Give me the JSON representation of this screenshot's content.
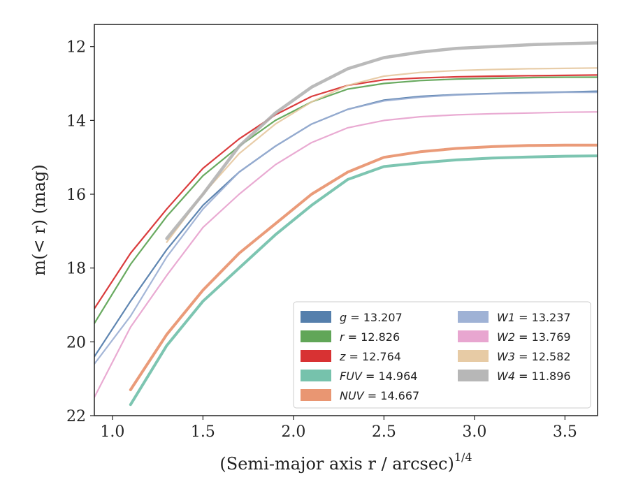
{
  "chart_data": {
    "type": "line",
    "xlabel": "(Semi-major axis r / arcsec)",
    "xlabel_superscript": "1/4",
    "ylabel": "m(< r) (mag)",
    "xlim": [
      0.9,
      3.68
    ],
    "ylim": [
      22,
      11.4
    ],
    "y_inverted": true,
    "x_ticks": [
      "1.0",
      "1.5",
      "2.0",
      "2.5",
      "3.0",
      "3.5"
    ],
    "x_tick_values": [
      1.0,
      1.5,
      2.0,
      2.5,
      3.0,
      3.5
    ],
    "y_ticks": [
      "12",
      "14",
      "16",
      "18",
      "20",
      "22"
    ],
    "y_tick_values": [
      12,
      14,
      16,
      18,
      20,
      22
    ],
    "grid": false,
    "legend_position": "lower-right",
    "series": [
      {
        "name": "g",
        "label": "g = 13.207",
        "color": "#4c78a8",
        "x": [
          0.9,
          1.1,
          1.3,
          1.5,
          1.7,
          1.9,
          2.1,
          2.3,
          2.5,
          2.7,
          2.9,
          3.1,
          3.3,
          3.5,
          3.68
        ],
        "y": [
          20.4,
          18.9,
          17.5,
          16.3,
          15.4,
          14.7,
          14.1,
          13.7,
          13.45,
          13.35,
          13.3,
          13.27,
          13.25,
          13.23,
          13.21
        ]
      },
      {
        "name": "r",
        "label": "r = 12.826",
        "color": "#59a14f",
        "x": [
          0.9,
          1.1,
          1.3,
          1.5,
          1.7,
          1.9,
          2.1,
          2.3,
          2.5,
          2.7,
          2.9,
          3.1,
          3.3,
          3.5,
          3.68
        ],
        "y": [
          19.5,
          17.9,
          16.6,
          15.5,
          14.7,
          14.0,
          13.5,
          13.15,
          13.0,
          12.92,
          12.88,
          12.86,
          12.84,
          12.83,
          12.83
        ]
      },
      {
        "name": "z",
        "label": "z = 12.764",
        "color": "#d62728",
        "x": [
          0.9,
          1.1,
          1.3,
          1.5,
          1.7,
          1.9,
          2.1,
          2.3,
          2.5,
          2.7,
          2.9,
          3.1,
          3.3,
          3.5,
          3.68
        ],
        "y": [
          19.1,
          17.6,
          16.4,
          15.3,
          14.5,
          13.85,
          13.35,
          13.05,
          12.9,
          12.85,
          12.82,
          12.8,
          12.79,
          12.78,
          12.77
        ]
      },
      {
        "name": "FUV",
        "label": "FUV = 14.964",
        "color": "#6fbfa8",
        "x": [
          1.1,
          1.3,
          1.5,
          1.7,
          1.9,
          2.1,
          2.3,
          2.5,
          2.7,
          2.9,
          3.1,
          3.3,
          3.5,
          3.68
        ],
        "y": [
          21.7,
          20.1,
          18.9,
          18.0,
          17.1,
          16.3,
          15.6,
          15.25,
          15.15,
          15.07,
          15.02,
          14.99,
          14.97,
          14.96
        ]
      },
      {
        "name": "NUV",
        "label": "NUV = 14.667",
        "color": "#e8906a",
        "x": [
          1.1,
          1.3,
          1.5,
          1.7,
          1.9,
          2.1,
          2.3,
          2.5,
          2.7,
          2.9,
          3.1,
          3.3,
          3.5,
          3.68
        ],
        "y": [
          21.3,
          19.8,
          18.6,
          17.6,
          16.8,
          16.0,
          15.4,
          15.0,
          14.85,
          14.76,
          14.71,
          14.68,
          14.67,
          14.67
        ]
      },
      {
        "name": "W1",
        "label": "W1 = 13.237",
        "color": "#9aaed3",
        "x": [
          0.9,
          1.1,
          1.3,
          1.5,
          1.7,
          1.9,
          2.1,
          2.3,
          2.5,
          2.7,
          2.9,
          3.1,
          3.3,
          3.5,
          3.68
        ],
        "y": [
          20.6,
          19.3,
          17.7,
          16.4,
          15.4,
          14.7,
          14.1,
          13.7,
          13.47,
          13.37,
          13.31,
          13.28,
          13.26,
          13.24,
          13.24
        ]
      },
      {
        "name": "W2",
        "label": "W2 = 13.769",
        "color": "#e7a1cd",
        "x": [
          0.9,
          1.1,
          1.3,
          1.5,
          1.7,
          1.9,
          2.1,
          2.3,
          2.5,
          2.7,
          2.9,
          3.1,
          3.3,
          3.5,
          3.68
        ],
        "y": [
          21.5,
          19.6,
          18.2,
          16.9,
          16.0,
          15.2,
          14.6,
          14.2,
          14.0,
          13.9,
          13.85,
          13.82,
          13.8,
          13.78,
          13.77
        ]
      },
      {
        "name": "W3",
        "label": "W3 = 12.582",
        "color": "#e6c8a0",
        "x": [
          1.3,
          1.5,
          1.7,
          1.9,
          2.1,
          2.3,
          2.5,
          2.7,
          2.9,
          3.1,
          3.3,
          3.5,
          3.68
        ],
        "y": [
          17.3,
          16.0,
          14.9,
          14.1,
          13.5,
          13.05,
          12.8,
          12.7,
          12.65,
          12.62,
          12.6,
          12.59,
          12.58
        ]
      },
      {
        "name": "W4",
        "label": "W4 = 11.896",
        "color": "#b3b3b3",
        "x": [
          1.3,
          1.5,
          1.7,
          1.9,
          2.1,
          2.3,
          2.5,
          2.7,
          2.9,
          3.1,
          3.3,
          3.5,
          3.68
        ],
        "y": [
          17.2,
          16.0,
          14.7,
          13.8,
          13.1,
          12.6,
          12.3,
          12.15,
          12.05,
          12.0,
          11.95,
          11.92,
          11.9
        ]
      }
    ]
  }
}
